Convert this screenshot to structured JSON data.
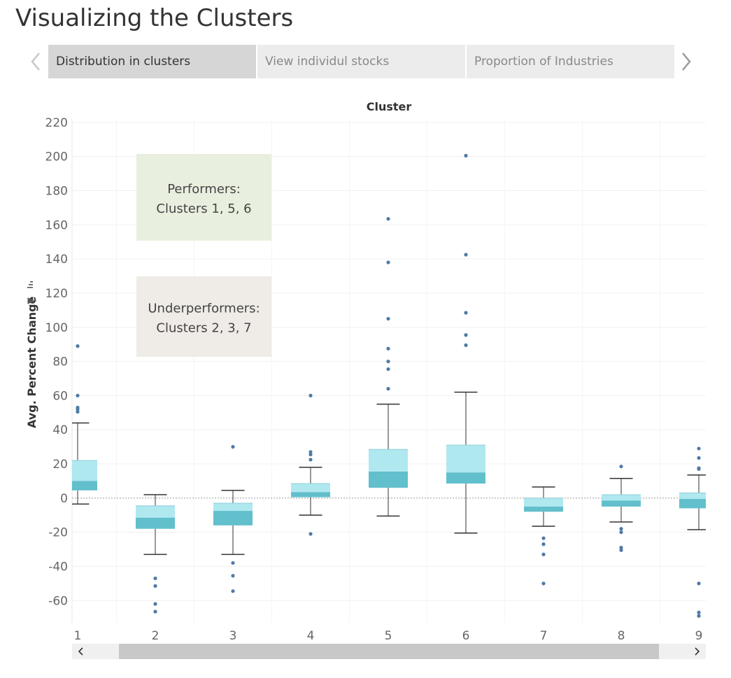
{
  "page": {
    "title": "Visualizing the Clusters"
  },
  "tabs": [
    {
      "label": "Distribution in clusters",
      "active": true
    },
    {
      "label": "View individul stocks",
      "active": false
    },
    {
      "label": "Proportion of Industries",
      "active": false
    }
  ],
  "icons": {
    "prev": "chevron-left-icon",
    "next": "chevron-right-icon",
    "pin": "pin-icon",
    "sort": "sort-icon"
  },
  "colors": {
    "box_upper": "#b0e8f0",
    "box_lower": "#62bfcc",
    "outlier": "#4f7aa6",
    "whisker": "#333333",
    "annotation_performers_bg": "#e9efdf",
    "annotation_underperformers_bg": "#efebe7"
  },
  "chart_data": {
    "type": "boxplot",
    "xlabel": "Cluster",
    "ylabel": "Avg. Percent Change",
    "ylim": [
      -73,
      222
    ],
    "yticks": [
      -60,
      -40,
      -20,
      0,
      20,
      40,
      60,
      80,
      100,
      120,
      140,
      160,
      180,
      200,
      220
    ],
    "categories": [
      "1",
      "2",
      "3",
      "4",
      "5",
      "6",
      "7",
      "8",
      "9"
    ],
    "grid": true,
    "zero_line": true,
    "boxes": [
      {
        "cluster": "1",
        "whisker_low": -3.5,
        "q1": 4.5,
        "median": 10,
        "q3": 22,
        "whisker_high": 44,
        "outliers": [
          89,
          60,
          53,
          52,
          50.5
        ]
      },
      {
        "cluster": "2",
        "whisker_low": -33,
        "q1": -18,
        "median": -11.5,
        "q3": -4.5,
        "whisker_high": 2,
        "outliers": [
          -47,
          -51.5,
          -62,
          -66.5
        ]
      },
      {
        "cluster": "3",
        "whisker_low": -33,
        "q1": -16,
        "median": -7.5,
        "q3": -3,
        "whisker_high": 4.5,
        "outliers": [
          30,
          -38,
          -45.5,
          -54.5
        ]
      },
      {
        "cluster": "4",
        "whisker_low": -10,
        "q1": 0.5,
        "median": 3.5,
        "q3": 8.5,
        "whisker_high": 18,
        "outliers": [
          60,
          27,
          25.5,
          22.5,
          -21
        ]
      },
      {
        "cluster": "5",
        "whisker_low": -10.5,
        "q1": 6,
        "median": 15.5,
        "q3": 28.5,
        "whisker_high": 55,
        "outliers": [
          163.5,
          138,
          105,
          87.5,
          80,
          75.5,
          64
        ]
      },
      {
        "cluster": "6",
        "whisker_low": -20.5,
        "q1": 8.5,
        "median": 15,
        "q3": 31,
        "whisker_high": 62,
        "outliers": [
          200.5,
          142.5,
          108.5,
          95.5,
          89.5
        ]
      },
      {
        "cluster": "7",
        "whisker_low": -16.5,
        "q1": -8,
        "median": -5,
        "q3": 0,
        "whisker_high": 6.5,
        "outliers": [
          -23.5,
          -27,
          -33,
          -50
        ]
      },
      {
        "cluster": "8",
        "whisker_low": -14,
        "q1": -5,
        "median": -1.5,
        "q3": 2,
        "whisker_high": 11.5,
        "outliers": [
          18.5,
          -18,
          -20,
          -29,
          -30.5
        ]
      },
      {
        "cluster": "9",
        "whisker_low": -18.5,
        "q1": -6,
        "median": -0.5,
        "q3": 3,
        "whisker_high": 13.5,
        "outliers": [
          29,
          23.5,
          17.5,
          17,
          -50,
          -67,
          -69
        ]
      }
    ],
    "annotations": [
      {
        "lines": [
          "Performers:",
          "Clusters 1, 5, 6"
        ]
      },
      {
        "lines": [
          "Underperformers:",
          "Clusters 2, 3, 7"
        ]
      }
    ]
  }
}
